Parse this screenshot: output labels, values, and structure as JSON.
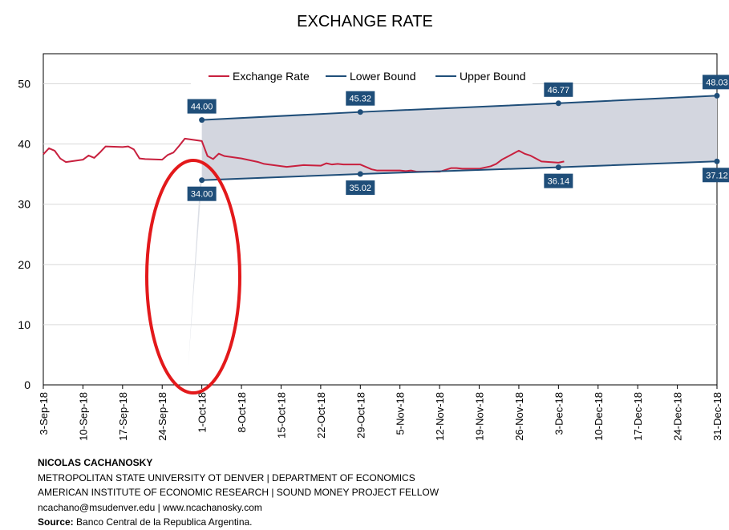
{
  "chart_data": {
    "type": "line",
    "title": "EXCHANGE RATE",
    "xlabel": "",
    "ylabel": "",
    "ylim": [
      0,
      55
    ],
    "yticks": [
      0,
      10,
      20,
      30,
      40,
      50
    ],
    "x_range": [
      "2018-09-03",
      "2018-12-31"
    ],
    "x_tick_labels": [
      "3-Sep-18",
      "10-Sep-18",
      "17-Sep-18",
      "24-Sep-18",
      "1-Oct-18",
      "8-Oct-18",
      "15-Oct-18",
      "22-Oct-18",
      "29-Oct-18",
      "5-Nov-18",
      "12-Nov-18",
      "19-Nov-18",
      "26-Nov-18",
      "3-Dec-18",
      "10-Dec-18",
      "17-Dec-18",
      "24-Dec-18",
      "31-Dec-18"
    ],
    "x_tick_dates": [
      "2018-09-03",
      "2018-09-10",
      "2018-09-17",
      "2018-09-24",
      "2018-10-01",
      "2018-10-08",
      "2018-10-15",
      "2018-10-22",
      "2018-10-29",
      "2018-11-05",
      "2018-11-12",
      "2018-11-19",
      "2018-11-26",
      "2018-12-03",
      "2018-12-10",
      "2018-12-17",
      "2018-12-24",
      "2018-12-31"
    ],
    "grid": true,
    "legend_position": "top",
    "series": [
      {
        "name": "Exchange Rate",
        "color": "#c8203e",
        "x": [
          "2018-09-03",
          "2018-09-04",
          "2018-09-05",
          "2018-09-06",
          "2018-09-07",
          "2018-09-10",
          "2018-09-11",
          "2018-09-12",
          "2018-09-13",
          "2018-09-14",
          "2018-09-17",
          "2018-09-18",
          "2018-09-19",
          "2018-09-20",
          "2018-09-21",
          "2018-09-24",
          "2018-09-25",
          "2018-09-26",
          "2018-09-27",
          "2018-09-28",
          "2018-10-01",
          "2018-10-02",
          "2018-10-03",
          "2018-10-04",
          "2018-10-05",
          "2018-10-08",
          "2018-10-09",
          "2018-10-10",
          "2018-10-11",
          "2018-10-12",
          "2018-10-16",
          "2018-10-17",
          "2018-10-18",
          "2018-10-19",
          "2018-10-22",
          "2018-10-23",
          "2018-10-24",
          "2018-10-25",
          "2018-10-26",
          "2018-10-29",
          "2018-10-30",
          "2018-10-31",
          "2018-11-01",
          "2018-11-02",
          "2018-11-05",
          "2018-11-06",
          "2018-11-07",
          "2018-11-08",
          "2018-11-09",
          "2018-11-12",
          "2018-11-13",
          "2018-11-14",
          "2018-11-15",
          "2018-11-16",
          "2018-11-19",
          "2018-11-20",
          "2018-11-21",
          "2018-11-22",
          "2018-11-23",
          "2018-11-26",
          "2018-11-27",
          "2018-11-28",
          "2018-11-29",
          "2018-11-30",
          "2018-12-03",
          "2018-12-04"
        ],
        "values": [
          38.3,
          39.3,
          38.9,
          37.6,
          37.0,
          37.4,
          38.1,
          37.7,
          38.6,
          39.6,
          39.5,
          39.6,
          39.1,
          37.6,
          37.5,
          37.4,
          38.2,
          38.6,
          39.7,
          40.9,
          40.5,
          38.0,
          37.5,
          38.4,
          38.0,
          37.6,
          37.4,
          37.2,
          37.0,
          36.7,
          36.2,
          36.3,
          36.4,
          36.5,
          36.4,
          36.8,
          36.6,
          36.7,
          36.6,
          36.6,
          36.2,
          35.8,
          35.6,
          35.6,
          35.6,
          35.5,
          35.6,
          35.4,
          35.4,
          35.4,
          35.7,
          36.0,
          36.0,
          35.9,
          35.9,
          36.1,
          36.3,
          36.7,
          37.4,
          38.9,
          38.4,
          38.1,
          37.6,
          37.1,
          36.9,
          37.1
        ]
      },
      {
        "name": "Lower Bound",
        "color": "#1f4e79",
        "x": [
          "2018-10-01",
          "2018-10-29",
          "2018-12-03",
          "2018-12-31"
        ],
        "values": [
          34.0,
          35.02,
          36.14,
          37.12
        ],
        "data_labels": [
          "34.00",
          "35.02",
          "36.14",
          "37.12"
        ]
      },
      {
        "name": "Upper Bound",
        "color": "#1f4e79",
        "x": [
          "2018-10-01",
          "2018-10-29",
          "2018-12-03",
          "2018-12-31"
        ],
        "values": [
          44.0,
          45.32,
          46.77,
          48.03
        ],
        "data_labels": [
          "44.00",
          "45.32",
          "46.77",
          "48.03"
        ]
      }
    ],
    "band_fill_color": "#d3d6df",
    "annotation": {
      "type": "red-ellipse",
      "color": "#e3191b"
    }
  },
  "footer": {
    "author": "NICOLAS CACHANOSKY",
    "line1": "METROPOLITAN STATE UNIVERSITY OT DENVER | DEPARTMENT OF ECONOMICS",
    "line2": "AMERICAN INSTITUTE OF ECONOMIC RESEARCH | SOUND MONEY PROJECT FELLOW",
    "contact": "ncachano@msudenver.edu  |  www.ncachanosky.com",
    "source_label": "Source:",
    "source_text": " Banco Central de la Republica Argentina."
  }
}
